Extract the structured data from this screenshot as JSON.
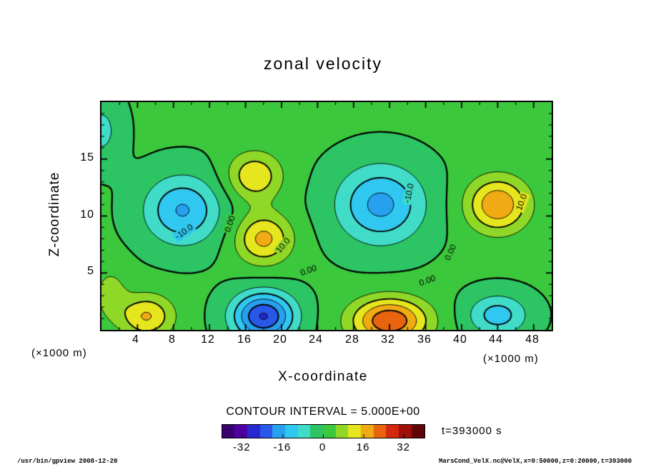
{
  "title": "zonal velocity",
  "axes": {
    "x": {
      "label": "X-coordinate",
      "unit": "(×1000 m)",
      "ticks": [
        4,
        8,
        12,
        16,
        20,
        24,
        28,
        32,
        36,
        40,
        44,
        48
      ],
      "range": [
        0,
        50
      ]
    },
    "z": {
      "label": "Z-coordinate",
      "unit": "(×1000 m)",
      "ticks": [
        5,
        10,
        15
      ],
      "range": [
        0,
        20
      ]
    }
  },
  "annotations": {
    "contour_interval": "CONTOUR INTERVAL = 5.000E+00",
    "time": "t=393000 s"
  },
  "colorbar": {
    "range": [
      -40,
      40
    ],
    "interval": 5,
    "ticks": [
      -32,
      -16,
      0,
      16,
      32
    ],
    "tick_labels": [
      "-32",
      "-16",
      "0",
      "16",
      "32"
    ],
    "band_colors": [
      "#38006e",
      "#5000a0",
      "#2828d0",
      "#2858e8",
      "#28a0f0",
      "#30c8f0",
      "#40dcc8",
      "#2dc464",
      "#3cc83c",
      "#90d828",
      "#e6e61e",
      "#f0aa14",
      "#e8640e",
      "#d42810",
      "#a01008",
      "#600606"
    ]
  },
  "footer": {
    "left": "/usr/bin/gpview  2008-12-20",
    "right": "MarsCond_VelX.nc@VelX,x=0:50000,z=0:20000,t=393000"
  },
  "chart_data": {
    "type": "contour",
    "title": "zonal velocity",
    "xlabel": "X-coordinate (×1000 m)",
    "ylabel": "Z-coordinate (×1000 m)",
    "x_range": [
      0,
      50
    ],
    "z_range": [
      0,
      20
    ],
    "contour_interval": 5.0,
    "contour_levels": [
      -25,
      -20,
      -15,
      -10,
      -5,
      0,
      5,
      10,
      15,
      20
    ],
    "time_seconds": 393000,
    "base": 0.5,
    "features": [
      {
        "x": 9,
        "z": 10.5,
        "sx": 4.2,
        "sz": 3.0,
        "amp": -16
      },
      {
        "x": 17,
        "z": 13.5,
        "sx": 3.0,
        "sz": 2.1,
        "amp": 14
      },
      {
        "x": 18,
        "z": 8.0,
        "sx": 3.1,
        "sz": 2.2,
        "amp": 16
      },
      {
        "x": 31,
        "z": 11.0,
        "sx": 4.8,
        "sz": 3.4,
        "amp": -17
      },
      {
        "x": 44,
        "z": 11.0,
        "sx": 3.4,
        "sz": 2.4,
        "amp": 19
      },
      {
        "x": 5,
        "z": 1.2,
        "sx": 3.0,
        "sz": 1.9,
        "amp": 15
      },
      {
        "x": 18,
        "z": 1.2,
        "sx": 3.4,
        "sz": 2.1,
        "amp": -26
      },
      {
        "x": 32,
        "z": 0.8,
        "sx": 4.2,
        "sz": 2.0,
        "amp": 24
      },
      {
        "x": 44,
        "z": 1.3,
        "sx": 3.3,
        "sz": 1.8,
        "amp": -13
      },
      {
        "x": 0,
        "z": 17.5,
        "sx": 2.2,
        "sz": 2.8,
        "amp": -7
      },
      {
        "x": 1,
        "z": 3.2,
        "sx": 1.8,
        "sz": 2.2,
        "amp": 7
      }
    ],
    "contour_labels": [
      {
        "text": "0.00",
        "x": 14.3,
        "z": 9.3,
        "rot": -72
      },
      {
        "text": "-10.0",
        "x": 9.2,
        "z": 8.6,
        "rot": -35
      },
      {
        "text": "10.0",
        "x": 20.2,
        "z": 7.4,
        "rot": -50
      },
      {
        "text": "0.00",
        "x": 23.0,
        "z": 5.2,
        "rot": -20
      },
      {
        "text": "-10.0",
        "x": 34.2,
        "z": 12.0,
        "rot": -78
      },
      {
        "text": "0.00",
        "x": 36.2,
        "z": 4.3,
        "rot": -20
      },
      {
        "text": "0.00",
        "x": 38.8,
        "z": 6.8,
        "rot": -65
      },
      {
        "text": "10.0",
        "x": 46.7,
        "z": 11.2,
        "rot": -70
      }
    ]
  }
}
